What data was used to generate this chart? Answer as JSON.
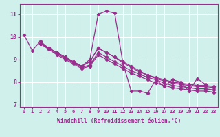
{
  "xlabel": "Windchill (Refroidissement éolien,°C)",
  "x": [
    0,
    1,
    2,
    3,
    4,
    5,
    6,
    7,
    8,
    9,
    10,
    11,
    12,
    13,
    14,
    15,
    16,
    17,
    18,
    19,
    20,
    21,
    22,
    23
  ],
  "lines": [
    [
      10.1,
      9.4,
      9.8,
      9.5,
      9.3,
      9.1,
      8.85,
      8.7,
      9.0,
      11.0,
      11.15,
      11.05,
      8.85,
      7.6,
      7.6,
      7.5,
      8.1,
      7.8,
      8.1,
      8.0,
      7.6,
      8.15,
      7.9,
      null
    ],
    [
      null,
      null,
      9.7,
      9.5,
      9.3,
      9.1,
      8.9,
      8.7,
      8.9,
      9.5,
      9.3,
      9.1,
      8.9,
      8.7,
      8.5,
      8.3,
      8.2,
      8.1,
      8.0,
      7.95,
      7.9,
      7.85,
      7.85,
      7.8
    ],
    [
      null,
      null,
      9.7,
      9.5,
      9.3,
      9.1,
      8.9,
      8.7,
      8.9,
      9.5,
      9.3,
      9.1,
      8.85,
      8.65,
      8.45,
      8.3,
      8.15,
      8.05,
      7.95,
      7.9,
      7.85,
      7.8,
      7.8,
      7.75
    ],
    [
      null,
      null,
      9.7,
      9.5,
      9.25,
      9.05,
      8.85,
      8.65,
      8.75,
      9.3,
      9.1,
      8.9,
      8.7,
      8.5,
      8.35,
      8.2,
      8.1,
      7.95,
      7.85,
      7.8,
      7.75,
      7.7,
      7.7,
      7.65
    ],
    [
      null,
      null,
      9.7,
      9.45,
      9.2,
      9.0,
      8.8,
      8.6,
      8.7,
      9.2,
      9.0,
      8.8,
      8.6,
      8.4,
      8.25,
      8.1,
      7.95,
      7.85,
      7.75,
      7.7,
      7.65,
      7.6,
      7.6,
      7.55
    ]
  ],
  "line_color": "#9b2d8e",
  "background_color": "#cff0eb",
  "grid_color": "#ffffff",
  "ylim": [
    6.9,
    11.45
  ],
  "xlim": [
    -0.5,
    23.5
  ],
  "yticks": [
    7,
    8,
    9,
    10,
    11
  ],
  "xticks": [
    0,
    1,
    2,
    3,
    4,
    5,
    6,
    7,
    8,
    9,
    10,
    11,
    12,
    13,
    14,
    15,
    16,
    17,
    18,
    19,
    20,
    21,
    22,
    23
  ]
}
